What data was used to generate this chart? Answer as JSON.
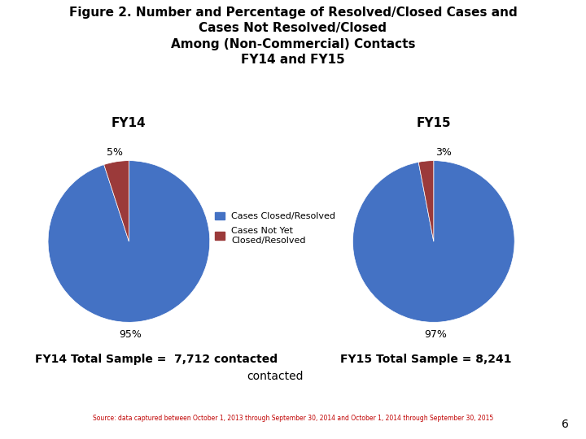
{
  "title_line1": "Figure 2. Number and Percentage of Resolved/Closed Cases and",
  "title_line2": "Cases Not Resolved/Closed",
  "title_line3": "Among (Non-Commercial) Contacts",
  "title_line4": "FY14 and FY15",
  "fy14_label": "FY14",
  "fy15_label": "FY15",
  "fy14_values": [
    95,
    5
  ],
  "fy15_values": [
    97,
    3
  ],
  "fy14_pct_labels": [
    "95%",
    "5%"
  ],
  "fy15_pct_labels": [
    "97%",
    "3%"
  ],
  "colors": [
    "#4472C4",
    "#9B3A3A"
  ],
  "legend_labels": [
    "Cases Closed/Resolved",
    "Cases Not Yet\nClosed/Resolved"
  ],
  "fy14_total": "FY14 Total Sample =  7,712 contacted",
  "fy15_total": "FY15 Total Sample = 8,241",
  "center_text": "contacted",
  "source_text": "Source: data captured between October 1, 2013 through September 30, 2014 and October 1, 2014 through September 30, 2015",
  "page_num": "6",
  "bg_color": "#FFFFFF",
  "title_fontsize": 11,
  "label_fontsize": 9,
  "legend_fontsize": 8,
  "total_fontsize": 10,
  "fy_label_fontsize": 11
}
